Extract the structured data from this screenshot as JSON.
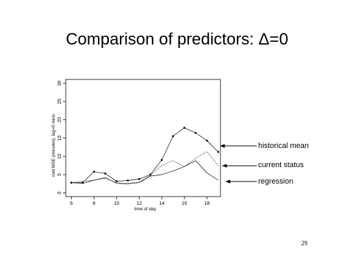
{
  "slide": {
    "title": "Comparison of predictors: Δ=0",
    "page_number": "29"
  },
  "chart_data": {
    "type": "line",
    "xlabel": "time of day",
    "ylabel": "root MSE (minutes), lag=0 mins.",
    "xlim": [
      5.5,
      19.2
    ],
    "ylim": [
      -1,
      31
    ],
    "xticks": [
      6,
      8,
      10,
      12,
      14,
      16,
      18
    ],
    "yticks": [
      0,
      5,
      10,
      15,
      20,
      25,
      30
    ],
    "grid": false,
    "legend": "right, with arrows pointing to lines",
    "series": [
      {
        "name": "historical mean",
        "style": "solid-with-points",
        "x": [
          6,
          7,
          8,
          9,
          10,
          11,
          12,
          13,
          14,
          15,
          16,
          17,
          18,
          19
        ],
        "y": [
          2.8,
          2.8,
          5.8,
          5.3,
          3.2,
          3.4,
          3.8,
          5.0,
          9.0,
          15.5,
          17.8,
          16.4,
          14.3,
          11.2
        ]
      },
      {
        "name": "current status",
        "style": "dotted",
        "x": [
          6,
          7,
          8,
          9,
          10,
          11,
          12,
          13,
          14,
          15,
          16,
          17,
          18,
          19
        ],
        "y": [
          2.8,
          3.2,
          3.5,
          4.0,
          2.8,
          2.6,
          3.0,
          4.8,
          7.5,
          8.8,
          7.2,
          9.5,
          11.3,
          7.5
        ]
      },
      {
        "name": "regression",
        "style": "solid",
        "x": [
          6,
          7,
          8,
          9,
          10,
          11,
          12,
          13,
          14,
          15,
          16,
          17,
          18,
          19
        ],
        "y": [
          2.8,
          2.6,
          3.5,
          4.2,
          2.6,
          2.5,
          2.8,
          4.6,
          5.0,
          6.0,
          7.2,
          8.8,
          5.5,
          3.5
        ]
      }
    ]
  },
  "colors": {
    "line": "#000000",
    "axis": "#000000",
    "background": "#ffffff"
  }
}
